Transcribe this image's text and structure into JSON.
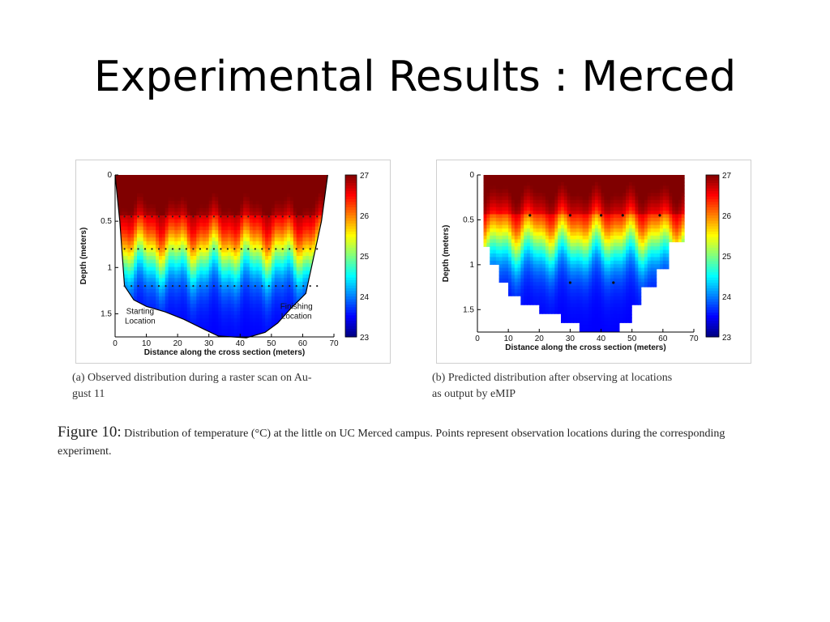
{
  "slide": {
    "title": "Experimental Results : Merced"
  },
  "chart_data": [
    {
      "type": "heatmap",
      "panel": "a",
      "xlabel": "Distance along the cross section (meters)",
      "ylabel": "Depth (meters)",
      "xlim": [
        0,
        70
      ],
      "ylim": [
        1.75,
        0
      ],
      "xticks": [
        0,
        10,
        20,
        30,
        40,
        50,
        60,
        70
      ],
      "yticks": [
        0,
        0.5,
        1,
        1.5
      ],
      "colorbar": {
        "min": 23,
        "max": 27,
        "ticks": [
          23,
          24,
          25,
          26,
          27
        ]
      },
      "annotations": [
        {
          "text": [
            "Starting",
            "Location"
          ],
          "x": 8,
          "y": 1.5
        },
        {
          "text": [
            "Finishing",
            "Location"
          ],
          "x": 58,
          "y": 1.45
        }
      ],
      "bottom_profile": [
        [
          0,
          0
        ],
        [
          1.5,
          0.5
        ],
        [
          3,
          1.2
        ],
        [
          6,
          1.35
        ],
        [
          10,
          1.42
        ],
        [
          16,
          1.48
        ],
        [
          22,
          1.56
        ],
        [
          28,
          1.66
        ],
        [
          33,
          1.74
        ],
        [
          42,
          1.76
        ],
        [
          48,
          1.7
        ],
        [
          52,
          1.6
        ],
        [
          56,
          1.45
        ],
        [
          61,
          1.28
        ],
        [
          66,
          0.5
        ],
        [
          68,
          0
        ]
      ],
      "observation_rows": [
        0.45,
        0.8,
        1.2
      ],
      "subcaption": "(a) Observed distribution during a raster scan on August 11",
      "subcaption_lines": [
        "(a) Observed distribution during a raster scan on Au-",
        "gust 11"
      ]
    },
    {
      "type": "heatmap",
      "panel": "b",
      "xlabel": "Distance along the cross section (meters)",
      "ylabel": "Depth (meters)",
      "xlim": [
        0,
        70
      ],
      "ylim": [
        1.75,
        0
      ],
      "xticks": [
        0,
        10,
        20,
        30,
        40,
        50,
        60,
        70
      ],
      "yticks": [
        0,
        0.5,
        1,
        1.5
      ],
      "colorbar": {
        "min": 23,
        "max": 27,
        "ticks": [
          23,
          24,
          25,
          26,
          27
        ]
      },
      "bottom_profile": [
        [
          2,
          0
        ],
        [
          2,
          0.8
        ],
        [
          4,
          0.8
        ],
        [
          4,
          1.0
        ],
        [
          7,
          1.0
        ],
        [
          7,
          1.2
        ],
        [
          10,
          1.2
        ],
        [
          10,
          1.35
        ],
        [
          14,
          1.35
        ],
        [
          14,
          1.45
        ],
        [
          20,
          1.45
        ],
        [
          20,
          1.55
        ],
        [
          27,
          1.55
        ],
        [
          27,
          1.65
        ],
        [
          33,
          1.65
        ],
        [
          33,
          1.75
        ],
        [
          46,
          1.75
        ],
        [
          46,
          1.65
        ],
        [
          50,
          1.65
        ],
        [
          50,
          1.45
        ],
        [
          53,
          1.45
        ],
        [
          53,
          1.25
        ],
        [
          58,
          1.25
        ],
        [
          58,
          1.05
        ],
        [
          62,
          1.05
        ],
        [
          62,
          0.75
        ],
        [
          67,
          0.75
        ],
        [
          67,
          0
        ]
      ],
      "observation_points": [
        [
          17,
          0.45
        ],
        [
          30,
          0.45
        ],
        [
          40,
          0.45
        ],
        [
          47,
          0.45
        ],
        [
          59,
          0.45
        ],
        [
          30,
          1.2
        ],
        [
          44,
          1.2
        ]
      ],
      "subcaption_lines": [
        "(b) Predicted distribution after observing at locations",
        "as output by eMIP"
      ]
    }
  ],
  "figure_caption": {
    "label": "Figure 10:",
    "text": "Distribution of temperature (°C) at the little on UC Merced campus. Points represent observation locations during the corresponding experiment."
  }
}
